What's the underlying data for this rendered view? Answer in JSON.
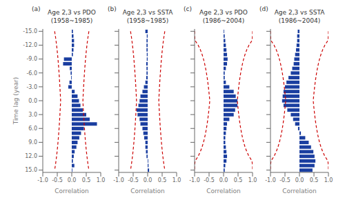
{
  "chart_data": [
    {
      "type": "bar",
      "orientation": "horizontal",
      "title": "Age 2,3 vs PDO\n(1958~1985)",
      "annotations": [
        "(a)"
      ],
      "xlabel": "Correlation",
      "ylabel": "Time lag (year)",
      "grid": false,
      "categories": [
        -15,
        -14,
        -13,
        -12,
        -11,
        -10,
        -9,
        -8,
        -7,
        -6,
        -5,
        -4,
        -3,
        -2,
        -1,
        0,
        1,
        2,
        3,
        4,
        5,
        6,
        7,
        8,
        9,
        10,
        11,
        12,
        13,
        14,
        15
      ],
      "xlim": [
        -1.0,
        1.0
      ],
      "xticks": [
        {
          "value": -1.0,
          "label": "-1.0"
        },
        -0.5,
        {
          "value": 0.0,
          "label": "0.0"
        },
        0.5,
        {
          "value": 1.0,
          "label": "1.0"
        }
      ],
      "ylim": [
        -15.5,
        15.5
      ],
      "yticks": [
        {
          "value": -15,
          "label": "-15.0"
        },
        {
          "value": -12,
          "label": "-12.0"
        },
        {
          "value": -9,
          "label": "-9.0"
        },
        {
          "value": -6,
          "label": "-6.0"
        },
        {
          "value": -3,
          "label": "-3.0"
        },
        {
          "value": 0,
          "label": "0.0"
        },
        {
          "value": 3,
          "label": "3.0"
        },
        {
          "value": 6,
          "label": "6.0"
        },
        {
          "value": 9,
          "label": "9.0"
        },
        {
          "value": 12,
          "label": "12.0"
        },
        {
          "value": 15,
          "label": "15.0"
        }
      ],
      "series": [
        {
          "type": "bar",
          "color": "#1A3EA0",
          "values": [
            0.04,
            0.06,
            0.08,
            0.08,
            0.06,
            0.04,
            -0.27,
            -0.3,
            -0.07,
            -0.04,
            -0.02,
            -0.08,
            -0.12,
            0.1,
            0.2,
            0.25,
            0.3,
            0.38,
            0.5,
            0.62,
            0.87,
            0.42,
            0.32,
            0.26,
            0.2,
            0.16,
            0.1,
            0.07,
            0.04,
            0.09,
            0.02
          ]
        },
        {
          "type": "line",
          "color": "#CC0000",
          "line_style": "dashed",
          "values": [
            0.591,
            0.5658,
            0.5436,
            0.5238,
            0.5061,
            0.49,
            0.4754,
            0.462,
            0.4497,
            0.4383,
            0.4277,
            0.4179,
            0.4087,
            0.4001,
            0.392,
            0.3844,
            0.392,
            0.4001,
            0.4087,
            0.4179,
            0.4277,
            0.4383,
            0.4497,
            0.462,
            0.4754,
            0.49,
            0.5061,
            0.5238,
            0.5436,
            0.5658,
            0.591
          ]
        },
        {
          "type": "line",
          "color": "#CC0000",
          "line_style": "dashed",
          "values": [
            -0.591,
            -0.5658,
            -0.5436,
            -0.5238,
            -0.5061,
            -0.49,
            -0.4754,
            -0.462,
            -0.4497,
            -0.4383,
            -0.4277,
            -0.4179,
            -0.4087,
            -0.4001,
            -0.392,
            -0.3844,
            -0.392,
            -0.4001,
            -0.4087,
            -0.4179,
            -0.4277,
            -0.4383,
            -0.4497,
            -0.462,
            -0.4754,
            -0.49,
            -0.5061,
            -0.5238,
            -0.5436,
            -0.5658,
            -0.591
          ]
        }
      ]
    },
    {
      "type": "bar",
      "orientation": "horizontal",
      "title": "Age 2,3 vs SSTA\n(1958~1985)",
      "annotations": [
        "(b)"
      ],
      "xlabel": "Correlation",
      "grid": false,
      "tick_labels": "x",
      "categories": [
        -15,
        -14,
        -13,
        -12,
        -11,
        -10,
        -9,
        -8,
        -7,
        -6,
        -5,
        -4,
        -3,
        -2,
        -1,
        0,
        1,
        2,
        3,
        4,
        5,
        6,
        7,
        8,
        9,
        10,
        11,
        12,
        13,
        14,
        15
      ],
      "xlim": [
        -1.0,
        1.0
      ],
      "xticks": [
        {
          "value": -1.0,
          "label": "-1.0"
        },
        -0.5,
        {
          "value": 0.0,
          "label": "0.0"
        },
        0.5,
        {
          "value": 1.0,
          "label": "1.0"
        }
      ],
      "ylim": [
        -15.5,
        15.5
      ],
      "yticks": [
        -15,
        -12,
        -9,
        -6,
        -3,
        0,
        3,
        6,
        9,
        12,
        15
      ],
      "series": [
        {
          "type": "bar",
          "color": "#1A3EA0",
          "values": [
            -0.08,
            -0.03,
            -0.04,
            -0.04,
            -0.04,
            -0.03,
            -0.03,
            -0.05,
            -0.04,
            -0.04,
            -0.05,
            -0.08,
            -0.13,
            -0.18,
            -0.25,
            -0.28,
            -0.32,
            -0.38,
            -0.35,
            -0.28,
            -0.25,
            -0.18,
            -0.15,
            -0.12,
            -0.08,
            -0.08,
            -0.06,
            -0.04,
            0.02,
            0.03,
            0.05
          ]
        },
        {
          "type": "line",
          "color": "#CC0000",
          "line_style": "dashed",
          "values": [
            0.591,
            0.5658,
            0.5436,
            0.5238,
            0.5061,
            0.49,
            0.4754,
            0.462,
            0.4497,
            0.4383,
            0.4277,
            0.4179,
            0.4087,
            0.4001,
            0.392,
            0.3844,
            0.392,
            0.4001,
            0.4087,
            0.4179,
            0.4277,
            0.4383,
            0.4497,
            0.462,
            0.4754,
            0.49,
            0.5061,
            0.5238,
            0.5436,
            0.5658,
            0.591
          ]
        },
        {
          "type": "line",
          "color": "#CC0000",
          "line_style": "dashed",
          "values": [
            -0.591,
            -0.5658,
            -0.5436,
            -0.5238,
            -0.5061,
            -0.49,
            -0.4754,
            -0.462,
            -0.4497,
            -0.4383,
            -0.4277,
            -0.4179,
            -0.4087,
            -0.4001,
            -0.392,
            -0.3844,
            -0.392,
            -0.4001,
            -0.4087,
            -0.4179,
            -0.4277,
            -0.4383,
            -0.4497,
            -0.462,
            -0.4754,
            -0.49,
            -0.5061,
            -0.5238,
            -0.5436,
            -0.5658,
            -0.591
          ]
        }
      ]
    },
    {
      "type": "bar",
      "orientation": "horizontal",
      "title": "Age 2,3 vs PDO\n(1986~2004)",
      "annotations": [
        "(c)"
      ],
      "xlabel": "Correlation",
      "grid": false,
      "tick_labels": "x",
      "categories": [
        -15,
        -14,
        -13,
        -12,
        -11,
        -10,
        -9,
        -8,
        -7,
        -6,
        -5,
        -4,
        -3,
        -2,
        -1,
        0,
        1,
        2,
        3,
        4,
        5,
        6,
        7,
        8,
        9,
        10,
        11,
        12,
        13,
        14,
        15
      ],
      "xlim": [
        -1.0,
        1.0
      ],
      "xticks": [
        {
          "value": -1.0,
          "label": "-1.0"
        },
        -0.5,
        {
          "value": 0.0,
          "label": "0.0"
        },
        0.5,
        {
          "value": 1.0,
          "label": "1.0"
        }
      ],
      "ylim": [
        -15.5,
        15.5
      ],
      "yticks": [
        -15,
        -12,
        -9,
        -6,
        -3,
        0,
        3,
        6,
        9,
        12,
        15
      ],
      "series": [
        {
          "type": "bar",
          "color": "#1A3EA0",
          "values": [
            0.02,
            0.04,
            0.06,
            0.08,
            0.1,
            0.12,
            0.14,
            0.12,
            0.08,
            0.04,
            0.04,
            0.08,
            0.2,
            0.35,
            0.42,
            0.48,
            0.48,
            0.4,
            0.35,
            0.2,
            0.12,
            0.1,
            0.08,
            0.06,
            0.06,
            0.08,
            0.1,
            0.12,
            0.1,
            0.06,
            0.04
          ]
        },
        {
          "type": "line",
          "color": "#CC0000",
          "line_style": "dashed",
          "values": [
            1.0,
            1.0,
            0.98,
            0.8765,
            0.8002,
            0.7408,
            0.693,
            0.6533,
            0.6198,
            0.591,
            0.5658,
            0.5436,
            0.5238,
            0.5061,
            0.49,
            0.4754,
            0.49,
            0.5061,
            0.5238,
            0.5436,
            0.5658,
            0.591,
            0.6198,
            0.6533,
            0.693,
            0.7408,
            0.8002,
            0.8765,
            0.98,
            1.0,
            1.0
          ]
        },
        {
          "type": "line",
          "color": "#CC0000",
          "line_style": "dashed",
          "values": [
            -1.0,
            -1.0,
            -0.98,
            -0.8765,
            -0.8002,
            -0.7408,
            -0.693,
            -0.6533,
            -0.6198,
            -0.591,
            -0.5658,
            -0.5436,
            -0.5238,
            -0.5061,
            -0.49,
            -0.4754,
            -0.49,
            -0.5061,
            -0.5238,
            -0.5436,
            -0.5658,
            -0.591,
            -0.6198,
            -0.6533,
            -0.693,
            -0.7408,
            -0.8002,
            -0.8765,
            -0.98,
            -1.0,
            -1.0
          ]
        }
      ]
    },
    {
      "type": "bar",
      "orientation": "horizontal",
      "title": "Age 2,3 vs SSTA\n(1986~2004)",
      "annotations": [
        "(d)"
      ],
      "xlabel": "Correlation",
      "grid": false,
      "tick_labels": "x",
      "categories": [
        -15,
        -14,
        -13,
        -12,
        -11,
        -10,
        -9,
        -8,
        -7,
        -6,
        -5,
        -4,
        -3,
        -2,
        -1,
        0,
        1,
        2,
        3,
        4,
        5,
        6,
        7,
        8,
        9,
        10,
        11,
        12,
        13,
        14,
        15
      ],
      "xlim": [
        -1.0,
        1.0
      ],
      "xticks": [
        {
          "value": -1.0,
          "label": "-1.0"
        },
        -0.5,
        {
          "value": 0.0,
          "label": "0.0"
        },
        0.5,
        {
          "value": 1.0,
          "label": "1.0"
        }
      ],
      "ylim": [
        -15.5,
        15.5
      ],
      "yticks": [
        -15,
        -12,
        -9,
        -6,
        -3,
        0,
        3,
        6,
        9,
        12,
        15
      ],
      "series": [
        {
          "type": "bar",
          "color": "#1A3EA0",
          "values": [
            -0.06,
            -0.08,
            -0.08,
            -0.1,
            -0.12,
            -0.15,
            -0.18,
            -0.2,
            -0.25,
            -0.3,
            -0.38,
            -0.45,
            -0.5,
            -0.55,
            -0.58,
            -0.6,
            -0.55,
            -0.42,
            -0.3,
            -0.22,
            -0.15,
            -0.05,
            0.05,
            0.2,
            0.32,
            0.4,
            0.48,
            0.52,
            0.55,
            0.52,
            0.45
          ]
        },
        {
          "type": "line",
          "color": "#CC0000",
          "line_style": "dashed",
          "values": [
            1.0,
            1.0,
            0.98,
            0.8765,
            0.8002,
            0.7408,
            0.693,
            0.6533,
            0.6198,
            0.591,
            0.5658,
            0.5436,
            0.5238,
            0.5061,
            0.49,
            0.4754,
            0.49,
            0.5061,
            0.5238,
            0.5436,
            0.5658,
            0.591,
            0.6198,
            0.6533,
            0.693,
            0.7408,
            0.8002,
            0.8765,
            0.98,
            1.0,
            1.0
          ]
        },
        {
          "type": "line",
          "color": "#CC0000",
          "line_style": "dashed",
          "values": [
            -1.0,
            -1.0,
            -0.98,
            -0.8765,
            -0.8002,
            -0.7408,
            -0.693,
            -0.6533,
            -0.6198,
            -0.591,
            -0.5658,
            -0.5436,
            -0.5238,
            -0.5061,
            -0.49,
            -0.4754,
            -0.49,
            -0.5061,
            -0.5238,
            -0.5436,
            -0.5658,
            -0.591,
            -0.6198,
            -0.6533,
            -0.693,
            -0.7408,
            -0.8002,
            -0.8765,
            -0.98,
            -1.0,
            -1.0
          ]
        }
      ]
    }
  ]
}
